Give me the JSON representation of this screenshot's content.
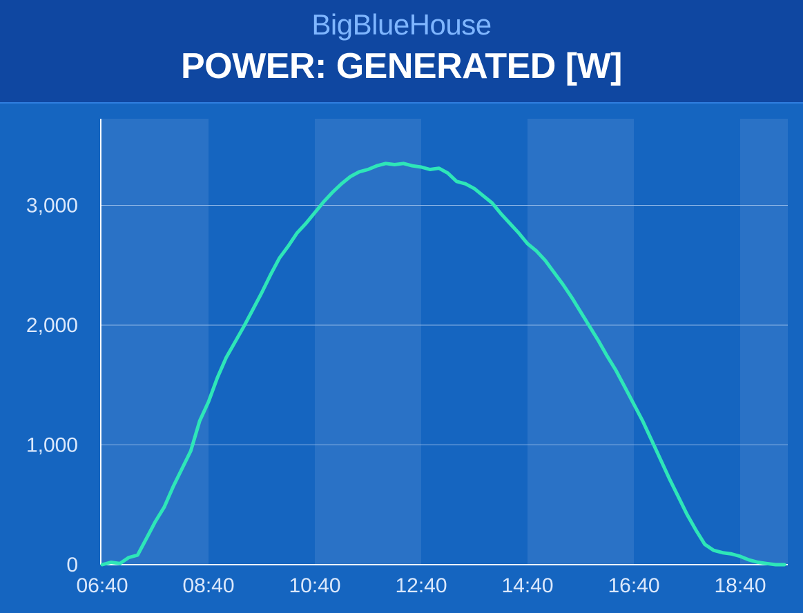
{
  "header": {
    "subtitle": "BigBlueHouse",
    "title": "POWER: GENERATED [W]"
  },
  "colors": {
    "background": "#1565c0",
    "header_background": "#0f47a1",
    "band": "#2a72c6",
    "line": "#2ee6b8",
    "subtitle": "#7fb6ff",
    "text": "#ffffff"
  },
  "chart_data": {
    "type": "line",
    "title": "POWER: GENERATED [W]",
    "xlabel": "",
    "ylabel": "",
    "x_tick_labels": [
      "06:40",
      "08:40",
      "10:40",
      "12:40",
      "14:40",
      "16:40",
      "18:40"
    ],
    "y_tick_values": [
      0,
      1000,
      2000,
      3000
    ],
    "y_tick_labels": [
      "0",
      "1,000",
      "2,000",
      "3,000"
    ],
    "ylim": [
      0,
      3700
    ],
    "xlim": [
      "06:40",
      "19:30"
    ],
    "grid": "horizontal",
    "legend": "none",
    "series": [
      {
        "x": [
          "06:40",
          "06:50",
          "07:00",
          "07:10",
          "07:20",
          "07:30",
          "07:40",
          "07:50",
          "08:00",
          "08:10",
          "08:20",
          "08:30",
          "08:40",
          "08:50",
          "09:00",
          "09:10",
          "09:20",
          "09:30",
          "09:40",
          "09:50",
          "10:00",
          "10:10",
          "10:20",
          "10:30",
          "10:40",
          "10:50",
          "11:00",
          "11:10",
          "11:20",
          "11:30",
          "11:40",
          "11:50",
          "12:00",
          "12:10",
          "12:20",
          "12:30",
          "12:40",
          "12:50",
          "13:00",
          "13:10",
          "13:20",
          "13:30",
          "13:40",
          "13:50",
          "14:00",
          "14:10",
          "14:20",
          "14:30",
          "14:40",
          "14:50",
          "15:00",
          "15:10",
          "15:20",
          "15:30",
          "15:40",
          "15:50",
          "16:00",
          "16:10",
          "16:20",
          "16:30",
          "16:40",
          "16:50",
          "17:00",
          "17:10",
          "17:20",
          "17:30",
          "17:40",
          "17:50",
          "18:00",
          "18:10",
          "18:20",
          "18:30",
          "18:40",
          "18:50",
          "19:00",
          "19:10",
          "19:20",
          "19:30"
        ],
        "values": [
          0,
          20,
          10,
          60,
          80,
          220,
          360,
          480,
          650,
          800,
          950,
          1200,
          1360,
          1560,
          1730,
          1860,
          1990,
          2130,
          2270,
          2420,
          2560,
          2660,
          2770,
          2850,
          2940,
          3030,
          3110,
          3180,
          3240,
          3280,
          3300,
          3330,
          3350,
          3340,
          3350,
          3330,
          3320,
          3300,
          3310,
          3270,
          3200,
          3180,
          3140,
          3080,
          3020,
          2930,
          2850,
          2770,
          2680,
          2620,
          2540,
          2440,
          2340,
          2230,
          2110,
          1990,
          1870,
          1740,
          1620,
          1480,
          1340,
          1200,
          1040,
          880,
          720,
          570,
          420,
          290,
          170,
          120,
          100,
          90,
          70,
          40,
          20,
          10,
          0,
          0
        ]
      }
    ]
  }
}
